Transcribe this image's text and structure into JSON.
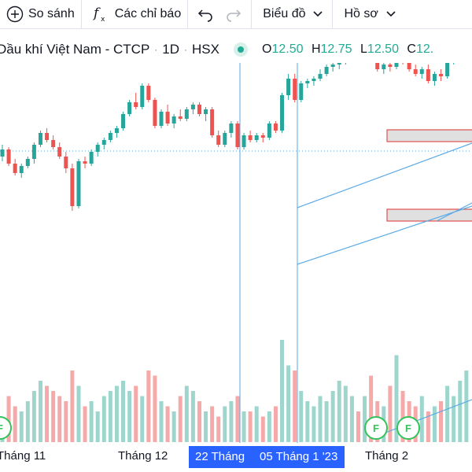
{
  "toolbar": {
    "compare_label": "So sánh",
    "indicators_label": "Các chỉ báo",
    "chart_type_label": "Biểu đồ",
    "profile_label": "Hồ sơ"
  },
  "legend": {
    "symbol_title": "Dầu khí Việt Nam - CTCP",
    "interval": "1D",
    "exchange": "HSX",
    "open_label": "O",
    "open_value": "12.50",
    "high_label": "H",
    "high_value": "12.75",
    "low_label": "L",
    "low_value": "12.50",
    "close_label": "C",
    "close_value": "12."
  },
  "colors": {
    "up": "#26a69a",
    "down": "#ef5350",
    "up_volume": "#9ed6cd",
    "down_volume": "#f5a9a8",
    "accent": "#2962ff",
    "drawing": "#5aa9e6",
    "event": "#33c35a"
  },
  "time_axis": {
    "labels": [
      "Tháng 11",
      "Tháng 12",
      "Tháng 2"
    ],
    "selected_range": [
      "22 Tháng",
      "05 Tháng 1 '23"
    ]
  },
  "events": [
    "F",
    "F",
    "F"
  ],
  "chart_data": {
    "type": "candlestick",
    "candles": [
      [
        12.3,
        12.8,
        12.1,
        12.6
      ],
      [
        12.6,
        12.7,
        11.9,
        12.0
      ],
      [
        12.0,
        12.2,
        11.5,
        11.6
      ],
      [
        11.6,
        12.0,
        11.4,
        11.9
      ],
      [
        11.9,
        12.3,
        11.8,
        12.2
      ],
      [
        12.2,
        12.9,
        12.0,
        12.8
      ],
      [
        12.8,
        13.4,
        12.7,
        13.3
      ],
      [
        13.3,
        13.5,
        12.9,
        13.0
      ],
      [
        13.0,
        13.2,
        12.6,
        12.7
      ],
      [
        12.7,
        12.9,
        12.2,
        12.3
      ],
      [
        12.3,
        12.5,
        11.6,
        11.8
      ],
      [
        11.8,
        12.0,
        10.0,
        10.2
      ],
      [
        10.2,
        12.2,
        10.1,
        12.1
      ],
      [
        12.1,
        12.3,
        11.8,
        12.0
      ],
      [
        12.0,
        12.6,
        11.9,
        12.5
      ],
      [
        12.5,
        12.9,
        12.3,
        12.8
      ],
      [
        12.8,
        13.1,
        12.6,
        13.0
      ],
      [
        13.0,
        13.4,
        12.9,
        13.3
      ],
      [
        13.3,
        13.6,
        13.1,
        13.5
      ],
      [
        13.5,
        14.2,
        13.4,
        14.1
      ],
      [
        14.1,
        14.7,
        14.0,
        14.6
      ],
      [
        14.6,
        15.0,
        14.3,
        14.4
      ],
      [
        14.4,
        15.4,
        14.3,
        15.3
      ],
      [
        15.3,
        15.4,
        14.6,
        14.7
      ],
      [
        14.7,
        14.8,
        13.5,
        13.6
      ],
      [
        13.6,
        14.3,
        13.5,
        14.2
      ],
      [
        14.2,
        14.5,
        13.6,
        13.7
      ],
      [
        13.7,
        14.1,
        13.5,
        14.0
      ],
      [
        14.0,
        14.3,
        13.8,
        13.9
      ],
      [
        13.9,
        14.4,
        13.8,
        14.3
      ],
      [
        14.3,
        14.6,
        14.1,
        14.5
      ],
      [
        14.5,
        14.6,
        14.0,
        14.1
      ],
      [
        14.1,
        14.4,
        13.8,
        14.3
      ],
      [
        14.3,
        14.4,
        13.1,
        13.2
      ],
      [
        13.2,
        13.4,
        12.7,
        12.8
      ],
      [
        12.8,
        13.4,
        12.7,
        13.3
      ],
      [
        13.3,
        13.8,
        13.1,
        13.7
      ],
      [
        13.7,
        13.8,
        12.6,
        12.7
      ],
      [
        12.7,
        13.3,
        12.6,
        13.2
      ],
      [
        13.2,
        13.4,
        12.9,
        13.0
      ],
      [
        13.0,
        13.3,
        12.9,
        13.2
      ],
      [
        13.2,
        13.3,
        12.9,
        13.1
      ],
      [
        13.1,
        13.8,
        13.0,
        13.7
      ],
      [
        13.7,
        13.8,
        13.3,
        13.4
      ],
      [
        13.4,
        15.0,
        13.3,
        14.9
      ],
      [
        14.9,
        15.8,
        14.7,
        15.6
      ],
      [
        15.6,
        15.8,
        14.6,
        14.7
      ],
      [
        14.7,
        15.5,
        14.6,
        15.4
      ],
      [
        15.4,
        15.6,
        15.2,
        15.5
      ],
      [
        15.5,
        15.7,
        15.3,
        15.6
      ],
      [
        15.6,
        16.0,
        15.5,
        15.8
      ],
      [
        15.8,
        16.2,
        15.7,
        16.1
      ],
      [
        16.1,
        16.4,
        15.9,
        16.2
      ],
      [
        16.2,
        16.5,
        16.0,
        16.4
      ],
      [
        16.4,
        16.7,
        16.2,
        16.6
      ],
      [
        16.6,
        16.8,
        16.4,
        16.7
      ],
      [
        16.7,
        16.8,
        16.5,
        16.6
      ],
      [
        16.6,
        17.1,
        16.5,
        17.0
      ],
      [
        17.0,
        17.2,
        16.6,
        16.7
      ],
      [
        16.7,
        16.9,
        15.9,
        16.0
      ],
      [
        16.0,
        16.3,
        15.8,
        16.2
      ],
      [
        16.2,
        16.5,
        15.9,
        16.1
      ],
      [
        16.1,
        17.1,
        16.0,
        17.0
      ],
      [
        17.0,
        17.1,
        16.2,
        16.3
      ],
      [
        16.3,
        16.5,
        15.9,
        16.0
      ],
      [
        16.0,
        16.2,
        15.7,
        15.8
      ],
      [
        15.8,
        16.1,
        15.6,
        16.0
      ],
      [
        16.0,
        16.2,
        15.4,
        15.5
      ],
      [
        15.5,
        15.9,
        15.3,
        15.8
      ],
      [
        15.8,
        16.0,
        15.5,
        15.7
      ],
      [
        15.7,
        16.4,
        15.6,
        16.3
      ],
      [
        16.3,
        16.9,
        16.2,
        16.8
      ],
      [
        16.8,
        17.2,
        16.6,
        17.1
      ],
      [
        17.1,
        17.4,
        16.9,
        17.2
      ]
    ],
    "volume": [
      0.2,
      0.45,
      0.35,
      0.3,
      0.4,
      0.5,
      0.6,
      0.55,
      0.5,
      0.45,
      0.4,
      0.7,
      0.55,
      0.35,
      0.4,
      0.3,
      0.45,
      0.5,
      0.55,
      0.6,
      0.5,
      0.55,
      0.45,
      0.7,
      0.65,
      0.4,
      0.35,
      0.3,
      0.45,
      0.55,
      0.5,
      0.4,
      0.3,
      0.35,
      0.25,
      0.35,
      0.4,
      0.45,
      0.3,
      0.3,
      0.35,
      0.25,
      0.3,
      0.35,
      1.0,
      0.75,
      0.7,
      0.5,
      0.4,
      0.35,
      0.45,
      0.4,
      0.5,
      0.6,
      0.55,
      0.45,
      0.3,
      0.45,
      0.65,
      0.4,
      0.35,
      0.55,
      0.85,
      0.5,
      0.4,
      0.35,
      0.45,
      0.3,
      0.35,
      0.4,
      0.55,
      0.45,
      0.6,
      0.7
    ]
  }
}
